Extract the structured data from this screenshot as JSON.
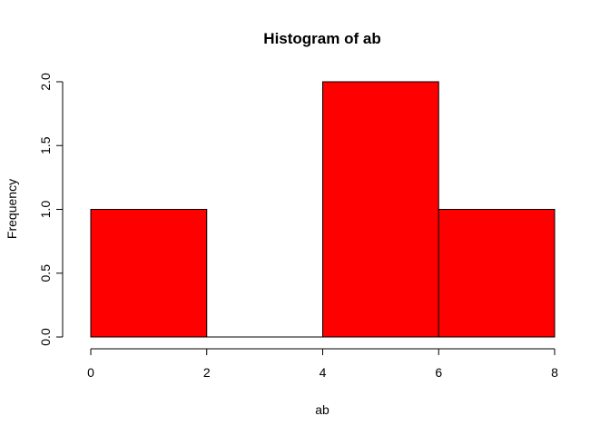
{
  "chart_data": {
    "type": "bar",
    "title": "Histogram of ab",
    "xlabel": "ab",
    "ylabel": "Frequency",
    "bins": [
      {
        "from": 0,
        "to": 2,
        "count": 1
      },
      {
        "from": 2,
        "to": 4,
        "count": 0
      },
      {
        "from": 4,
        "to": 6,
        "count": 2
      },
      {
        "from": 6,
        "to": 8,
        "count": 1
      }
    ],
    "xlim": [
      0,
      8
    ],
    "ylim": [
      0,
      2
    ],
    "x_ticks": [
      "0",
      "2",
      "4",
      "6",
      "8"
    ],
    "y_ticks": [
      "0.0",
      "0.5",
      "1.0",
      "1.5",
      "2.0"
    ],
    "bar_color": "#ff0000",
    "border_color": "#000000",
    "grid": false,
    "legend": "none"
  }
}
